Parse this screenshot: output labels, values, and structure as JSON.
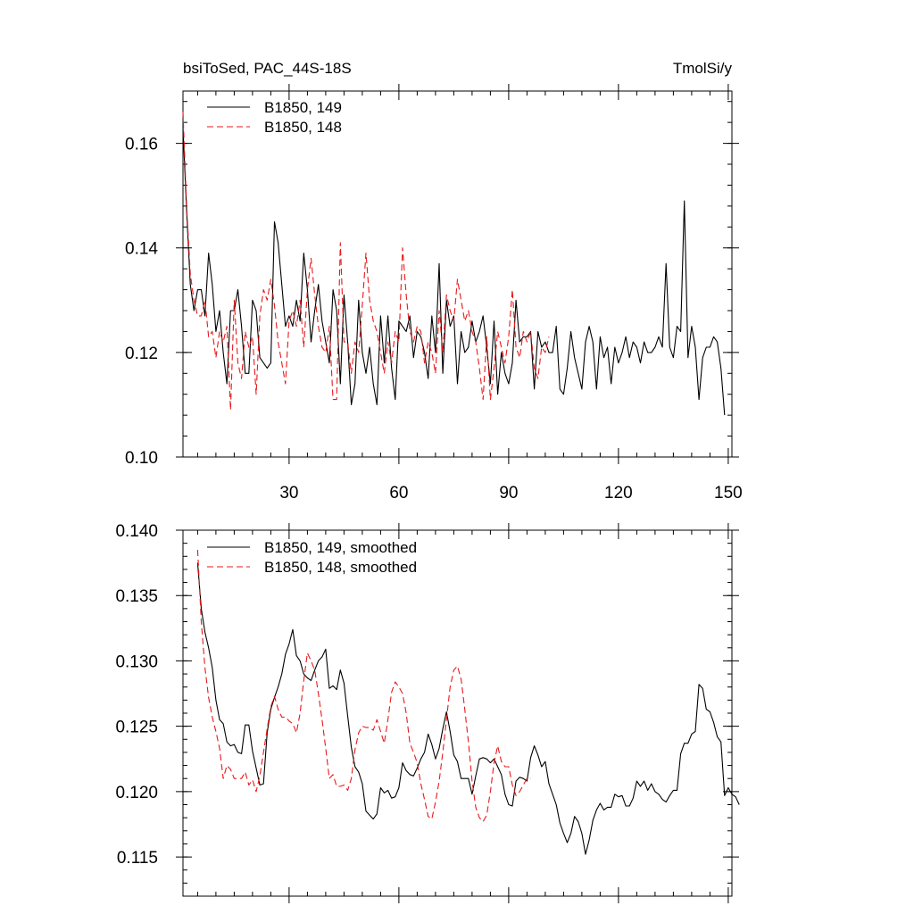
{
  "chart_data": [
    {
      "type": "line",
      "title_left": "bsiToSed, PAC_44S-18S",
      "title_right": "TmolSi/y",
      "xlim": [
        1,
        151
      ],
      "ylim": [
        0.1,
        0.17
      ],
      "xticks": [
        30,
        60,
        90,
        120,
        150
      ],
      "yticks": [
        0.1,
        0.12,
        0.14,
        0.16
      ],
      "ytick_labels": [
        "0.10",
        "0.12",
        "0.14",
        "0.16"
      ],
      "legend_position": "top-left",
      "series": [
        {
          "name": "B1850, 149",
          "color": "#000000",
          "dash": "solid",
          "x_start": 1,
          "values": [
            0.163,
            0.147,
            0.133,
            0.128,
            0.132,
            0.132,
            0.127,
            0.139,
            0.133,
            0.124,
            0.128,
            0.12,
            0.114,
            0.128,
            0.128,
            0.132,
            0.125,
            0.116,
            0.116,
            0.13,
            0.128,
            0.119,
            0.118,
            0.117,
            0.118,
            0.145,
            0.141,
            0.133,
            0.125,
            0.127,
            0.125,
            0.13,
            0.126,
            0.139,
            0.132,
            0.122,
            0.128,
            0.133,
            0.126,
            0.122,
            0.118,
            0.132,
            0.128,
            0.114,
            0.131,
            0.122,
            0.11,
            0.114,
            0.13,
            0.12,
            0.116,
            0.121,
            0.114,
            0.11,
            0.127,
            0.118,
            0.127,
            0.117,
            0.111,
            0.126,
            0.125,
            0.124,
            0.127,
            0.119,
            0.124,
            0.123,
            0.12,
            0.115,
            0.127,
            0.12,
            0.137,
            0.116,
            0.13,
            0.125,
            0.127,
            0.114,
            0.124,
            0.12,
            0.121,
            0.126,
            0.122,
            0.124,
            0.127,
            0.121,
            0.114,
            0.126,
            0.112,
            0.12,
            0.116,
            0.114,
            0.118,
            0.13,
            0.122,
            0.123,
            0.123,
            0.124,
            0.113,
            0.124,
            0.121,
            0.122,
            0.12,
            0.12,
            0.125,
            0.113,
            0.112,
            0.117,
            0.124,
            0.119,
            0.116,
            0.113,
            0.122,
            0.125,
            0.122,
            0.113,
            0.123,
            0.119,
            0.121,
            0.114,
            0.121,
            0.118,
            0.12,
            0.123,
            0.119,
            0.122,
            0.121,
            0.118,
            0.122,
            0.12,
            0.12,
            0.121,
            0.123,
            0.121,
            0.137,
            0.121,
            0.119,
            0.125,
            0.124,
            0.149,
            0.119,
            0.125,
            0.121,
            0.111,
            0.119,
            0.121,
            0.121,
            0.123,
            0.122,
            0.117,
            0.108
          ]
        },
        {
          "name": "B1850, 148",
          "color": "#e8181a",
          "dash": "dashed",
          "x_start": 1,
          "values": [
            0.166,
            0.148,
            0.135,
            0.13,
            0.127,
            0.127,
            0.13,
            0.123,
            0.124,
            0.119,
            0.124,
            0.122,
            0.125,
            0.109,
            0.13,
            0.118,
            0.115,
            0.124,
            0.121,
            0.123,
            0.112,
            0.127,
            0.132,
            0.13,
            0.134,
            0.129,
            0.122,
            0.118,
            0.114,
            0.126,
            0.128,
            0.125,
            0.13,
            0.121,
            0.132,
            0.138,
            0.131,
            0.125,
            0.121,
            0.12,
            0.125,
            0.111,
            0.111,
            0.141,
            0.122,
            0.122,
            0.116,
            0.122,
            0.12,
            0.129,
            0.139,
            0.13,
            0.126,
            0.124,
            0.12,
            0.116,
            0.122,
            0.118,
            0.124,
            0.122,
            0.14,
            0.131,
            0.124,
            0.122,
            0.125,
            0.124,
            0.118,
            0.122,
            0.12,
            0.116,
            0.128,
            0.12,
            0.131,
            0.128,
            0.126,
            0.134,
            0.13,
            0.126,
            0.128,
            0.124,
            0.122,
            0.117,
            0.111,
            0.123,
            0.111,
            0.117,
            0.124,
            0.121,
            0.118,
            0.123,
            0.132,
            0.121,
            0.119,
            0.124,
            0.122,
            0.124,
            0.117,
            0.115,
            0.121,
            0.12,
            0.123
          ]
        }
      ]
    },
    {
      "type": "line",
      "xlim": [
        1,
        151
      ],
      "ylim": [
        0.112,
        0.14
      ],
      "xticks": [
        30,
        60,
        90,
        120,
        150
      ],
      "yticks": [
        0.115,
        0.12,
        0.125,
        0.13,
        0.135,
        0.14
      ],
      "ytick_labels": [
        "0.115",
        "0.120",
        "0.125",
        "0.130",
        "0.135",
        "0.140"
      ],
      "legend_position": "top-left",
      "series": [
        {
          "name": "B1850, 149, smoothed",
          "color": "#000000",
          "dash": "solid",
          "x_start": 5,
          "values": [
            0.1375,
            0.134,
            0.1322,
            0.131,
            0.1295,
            0.127,
            0.1255,
            0.1252,
            0.1238,
            0.1235,
            0.1236,
            0.123,
            0.1229,
            0.1251,
            0.1251,
            0.1231,
            0.1218,
            0.1205,
            0.1206,
            0.1245,
            0.1263,
            0.1272,
            0.128,
            0.129,
            0.1305,
            0.1313,
            0.1324,
            0.1304,
            0.13,
            0.129,
            0.1287,
            0.1285,
            0.1293,
            0.13,
            0.1303,
            0.1309,
            0.1279,
            0.1281,
            0.1278,
            0.1293,
            0.1283,
            0.1258,
            0.1234,
            0.1219,
            0.1215,
            0.1206,
            0.1185,
            0.1182,
            0.1179,
            0.1183,
            0.1203,
            0.1199,
            0.1201,
            0.1195,
            0.1196,
            0.1203,
            0.1222,
            0.1216,
            0.1213,
            0.1212,
            0.1218,
            0.1225,
            0.123,
            0.1244,
            0.1236,
            0.1225,
            0.1233,
            0.1248,
            0.1261,
            0.1246,
            0.1228,
            0.1223,
            0.121,
            0.121,
            0.121,
            0.1198,
            0.1212,
            0.1225,
            0.1226,
            0.1225,
            0.1222,
            0.1225,
            0.1219,
            0.1213,
            0.1198,
            0.119,
            0.1189,
            0.1208,
            0.1211,
            0.121,
            0.1208,
            0.1226,
            0.1235,
            0.1228,
            0.1219,
            0.1223,
            0.1206,
            0.1198,
            0.119,
            0.1176,
            0.1168,
            0.1161,
            0.1168,
            0.1181,
            0.1177,
            0.1168,
            0.1152,
            0.1163,
            0.1178,
            0.1186,
            0.1191,
            0.1186,
            0.1188,
            0.1188,
            0.1198,
            0.1196,
            0.1197,
            0.1189,
            0.1189,
            0.1195,
            0.1208,
            0.1204,
            0.1208,
            0.1201,
            0.1206,
            0.12,
            0.1198,
            0.1194,
            0.1192,
            0.1197,
            0.1201,
            0.1201,
            0.1229,
            0.1237,
            0.1237,
            0.1244,
            0.1246,
            0.1282,
            0.1279,
            0.1263,
            0.1261,
            0.1253,
            0.1242,
            0.1238,
            0.1197,
            0.1203,
            0.1198,
            0.1196,
            0.119
          ]
        },
        {
          "name": "B1850, 148, smoothed",
          "color": "#e8181a",
          "dash": "dashed",
          "x_start": 5,
          "values": [
            0.1385,
            0.133,
            0.1295,
            0.1272,
            0.1257,
            0.1246,
            0.1233,
            0.121,
            0.122,
            0.1217,
            0.121,
            0.121,
            0.121,
            0.1215,
            0.1205,
            0.1209,
            0.12,
            0.1212,
            0.123,
            0.1248,
            0.1265,
            0.1273,
            0.1263,
            0.1257,
            0.1257,
            0.1254,
            0.1252,
            0.1245,
            0.126,
            0.1285,
            0.1306,
            0.13,
            0.1293,
            0.1275,
            0.1255,
            0.1233,
            0.121,
            0.1213,
            0.1204,
            0.1204,
            0.1205,
            0.1201,
            0.121,
            0.1232,
            0.1245,
            0.125,
            0.1249,
            0.1249,
            0.1247,
            0.1255,
            0.1246,
            0.1237,
            0.1255,
            0.1276,
            0.1284,
            0.128,
            0.1275,
            0.126,
            0.1237,
            0.123,
            0.1222,
            0.1206,
            0.1194,
            0.1181,
            0.1179,
            0.1192,
            0.1208,
            0.123,
            0.1255,
            0.128,
            0.1293,
            0.1296,
            0.1286,
            0.1263,
            0.1238,
            0.1208,
            0.1188,
            0.118,
            0.1177,
            0.1182,
            0.12,
            0.1222,
            0.1235,
            0.1223,
            0.1219,
            0.1219,
            0.1205,
            0.1197,
            0.12,
            0.1205,
            0.121,
            0.121
          ]
        }
      ]
    }
  ]
}
